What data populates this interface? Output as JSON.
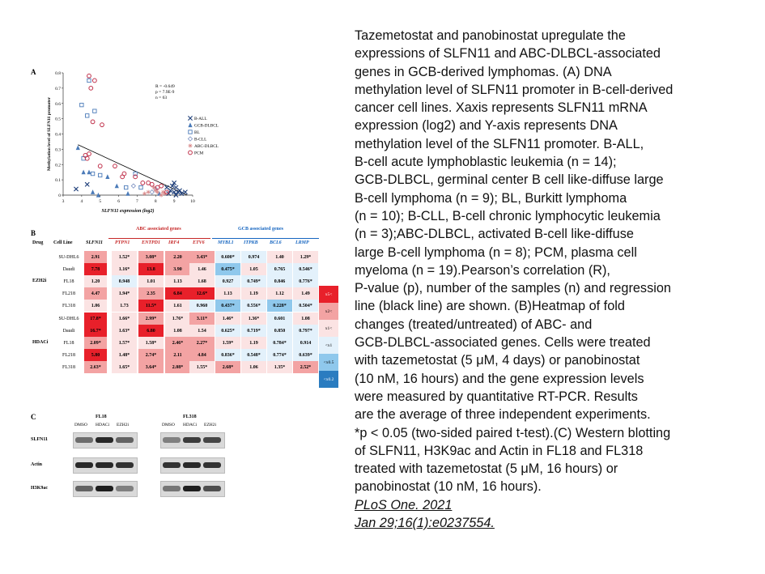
{
  "caption": {
    "lines": [
      "Tazemetostat and panobinostat upregulate the",
      "expressions of SLFN11 and ABC-DLBCL-associated",
      "genes in GCB-derived lymphomas. (A) DNA",
      "methylation level of SLFN11 promoter in B-cell-derived",
      "cancer cell lines. Xaxis represents SLFN11 mRNA",
      "expression (log2) and Y-axis represents DNA",
      "methylation level of the SLFN11 promoter. B-ALL,",
      "B-cell acute lymphoblastic leukemia (n = 14);",
      "GCB-DLBCL, germinal center B cell like-diffuse large",
      "B-cell lymphoma (n = 9); BL, Burkitt lymphoma",
      "(n = 10); B-CLL, B-cell chronic lymphocytic leukemia",
      "(n = 3);ABC-DLBCL, activated B-cell like-diffuse",
      "large B-cell lymphoma (n = 8); PCM, plasma cell",
      "myeloma (n = 19).Pearson’s correlation (R),",
      "P-value (p), number of the samples (n) and regression",
      "line (black line) are shown. (B)Heatmap of fold",
      "changes (treated/untreated) of ABC- and",
      "GCB-DLBCL-associated genes. Cells were treated",
      "with tazemetostat (5 μM, 4 days) or panobinostat",
      "(10 nM, 16 hours) and the gene expression levels",
      "were measured by quantitative RT-PCR. Results",
      "are the average of three independent experiments.",
      "*p < 0.05 (two-sided paired t-test).(C) Western blotting",
      "of SLFN11, H3K9ac and Actin in FL18 and FL318",
      "treated with tazemetostat (5 μM, 16 hours) or",
      "panobinostat (10 nM, 16 hours)."
    ],
    "citation_line1": "PLoS One. 2021",
    "citation_line2": "Jan 29;16(1):e0237554."
  },
  "panelA": {
    "letter": "A",
    "stats": [
      "R = -0.649",
      "p = 7.9E-9",
      "n = 63"
    ],
    "legend": [
      {
        "name": "B-ALL",
        "symbol": "x",
        "color": "#1f3f7a"
      },
      {
        "name": "GCB-DLBCL",
        "symbol": "triangle",
        "color": "#4a7ab8"
      },
      {
        "name": "BL",
        "symbol": "square",
        "color": "#4a7ab8"
      },
      {
        "name": "B-CLL",
        "symbol": "diamond",
        "color": "#7a8fc0"
      },
      {
        "name": "ABC-DLBCL",
        "symbol": "star",
        "color": "#d98a8a"
      },
      {
        "name": "PCM",
        "symbol": "circle",
        "color": "#c0304a"
      }
    ]
  },
  "chart_data": {
    "type": "scatter",
    "xlabel": "SLFN11 expression (log2)",
    "ylabel": "Methylation level of SLFN11 promoter",
    "xlim": [
      3,
      10
    ],
    "ylim": [
      0,
      0.8
    ],
    "xticks": [
      3,
      4,
      5,
      6,
      7,
      8,
      9,
      10
    ],
    "yticks": [
      0,
      0.1,
      0.2,
      0.3,
      0.4,
      0.5,
      0.6,
      0.7,
      0.8
    ],
    "regression": {
      "x": [
        3.8,
        9.7
      ],
      "y": [
        0.33,
        0.0
      ]
    },
    "series": [
      {
        "name": "B-ALL",
        "points": [
          [
            3.7,
            0.04
          ],
          [
            4.3,
            0.07
          ],
          [
            8.6,
            0.05
          ],
          [
            8.8,
            0.03
          ],
          [
            8.9,
            0.06
          ],
          [
            9.0,
            0.02
          ],
          [
            9.1,
            0.05
          ],
          [
            9.2,
            0.02
          ],
          [
            9.3,
            0.03
          ],
          [
            9.0,
            0.08
          ],
          [
            8.7,
            0.01
          ],
          [
            9.4,
            0.01
          ],
          [
            9.1,
            0.0
          ],
          [
            9.6,
            0.02
          ]
        ]
      },
      {
        "name": "GCB-DLBCL",
        "points": [
          [
            3.8,
            0.31
          ],
          [
            4.1,
            0.15
          ],
          [
            4.4,
            0.15
          ],
          [
            4.6,
            0.02
          ],
          [
            5.4,
            0.12
          ],
          [
            5.9,
            0.06
          ],
          [
            6.5,
            0.01
          ],
          [
            8.2,
            0.01
          ],
          [
            4.9,
            0.0
          ]
        ]
      },
      {
        "name": "BL",
        "points": [
          [
            4.0,
            0.59
          ],
          [
            4.3,
            0.52
          ],
          [
            4.1,
            0.24
          ],
          [
            4.6,
            0.14
          ],
          [
            5.0,
            0.13
          ],
          [
            4.4,
            0.75
          ],
          [
            4.7,
            0.55
          ],
          [
            6.9,
            0.14
          ],
          [
            7.2,
            0.05
          ],
          [
            6.4,
            0.05
          ]
        ]
      },
      {
        "name": "B-CLL",
        "points": [
          [
            7.8,
            0.02
          ],
          [
            6.8,
            0.06
          ],
          [
            8.0,
            0.04
          ]
        ]
      },
      {
        "name": "ABC-DLBCL",
        "points": [
          [
            7.4,
            0.01
          ],
          [
            8.0,
            0.03
          ],
          [
            8.3,
            0.0
          ],
          [
            7.6,
            0.02
          ],
          [
            8.5,
            0.01
          ],
          [
            7.9,
            0.05
          ],
          [
            8.1,
            0.02
          ],
          [
            8.4,
            0.02
          ]
        ]
      },
      {
        "name": "PCM",
        "points": [
          [
            4.4,
            0.78
          ],
          [
            4.5,
            0.7
          ],
          [
            4.7,
            0.75
          ],
          [
            5.1,
            0.46
          ],
          [
            4.6,
            0.48
          ],
          [
            4.2,
            0.26
          ],
          [
            4.3,
            0.24
          ],
          [
            4.4,
            0.27
          ],
          [
            5.0,
            0.19
          ],
          [
            5.8,
            0.19
          ],
          [
            6.3,
            0.14
          ],
          [
            6.9,
            0.12
          ],
          [
            7.3,
            0.08
          ],
          [
            7.8,
            0.07
          ],
          [
            8.1,
            0.05
          ],
          [
            8.3,
            0.06
          ],
          [
            8.6,
            0.02
          ],
          [
            7.6,
            0.08
          ],
          [
            6.2,
            0.12
          ]
        ]
      }
    ]
  },
  "panelB": {
    "letter": "B",
    "abc_header": "ABC associated genes",
    "gcb_header": "GCB associated genes",
    "col_drug": "Drug",
    "col_cell": "Cell Line",
    "genes_slfn": "SLFN11",
    "genes_abc": [
      "PTPN1",
      "ENTPD1",
      "IRF4",
      "ETV6"
    ],
    "genes_gcb": [
      "MYBL1",
      "ITPKB",
      "BCL6",
      "LRMP"
    ],
    "groups": [
      {
        "drug": "EZH2i",
        "rows": [
          {
            "cell": "SU-DHL6",
            "values": [
              "2.91",
              "1.52*",
              "3.08*",
              "2.20",
              "3.43*",
              "0.600*",
              "0.974",
              "1.40",
              "1.29*"
            ]
          },
          {
            "cell": "Daudi",
            "values": [
              "7.78",
              "1.16*",
              "13.8",
              "3.90",
              "1.46",
              "0.475*",
              "1.05",
              "0.765",
              "0.546*"
            ]
          },
          {
            "cell": "FL18",
            "values": [
              "1.20",
              "0.948",
              "1.01",
              "1.13",
              "1.68",
              "0.927",
              "0.749*",
              "0.846",
              "0.776*"
            ]
          },
          {
            "cell": "FL218",
            "values": [
              "4.47",
              "1.94*",
              "2.35",
              "6.84",
              "12.6*",
              "1.13",
              "1.19",
              "1.12",
              "1.49"
            ]
          },
          {
            "cell": "FL318",
            "values": [
              "1.06",
              "1.73",
              "11.5*",
              "1.61",
              "0.960",
              "0.437*",
              "0.556*",
              "0.228*",
              "0.504*"
            ]
          }
        ]
      },
      {
        "drug": "HDACi",
        "rows": [
          {
            "cell": "SU-DHL6",
            "values": [
              "17.8*",
              "1.66*",
              "2.99*",
              "1.76*",
              "3.11*",
              "1.46*",
              "1.36*",
              "0.601",
              "1.08"
            ]
          },
          {
            "cell": "Daudi",
            "values": [
              "16.7*",
              "1.63*",
              "6.80",
              "1.08",
              "1.54",
              "0.625*",
              "0.719*",
              "0.850",
              "0.797*"
            ]
          },
          {
            "cell": "FL18",
            "values": [
              "2.09*",
              "1.57*",
              "1.58*",
              "2.46*",
              "2.27*",
              "1.59*",
              "1.19",
              "0.784*",
              "0.914"
            ]
          },
          {
            "cell": "FL218",
            "values": [
              "5.80",
              "1.48*",
              "2.74*",
              "2.11",
              "4.84",
              "0.836*",
              "0.548*",
              "0.774*",
              "0.639*"
            ]
          },
          {
            "cell": "FL318",
            "values": [
              "2.63*",
              "1.65*",
              "3.64*",
              "2.08*",
              "1.55*",
              "2.68*",
              "1.06",
              "1.35*",
              "2.52*"
            ]
          }
        ]
      }
    ],
    "legend": [
      {
        "label": "x5<",
        "color": "#e8202a"
      },
      {
        "label": "x2<",
        "color": "#f3a3a3"
      },
      {
        "label": "x1<",
        "color": "#fbe3e3"
      },
      {
        "label": "<x1",
        "color": "#e3f1fb"
      },
      {
        "label": "<x0.5",
        "color": "#8fc8ec"
      },
      {
        "label": "<x0.2",
        "color": "#2a7cc0"
      }
    ]
  },
  "panelC": {
    "letter": "C",
    "cells": [
      "FL18",
      "FL318"
    ],
    "lanes": [
      "DMSO",
      "HDACi",
      "EZH2i"
    ],
    "blots": [
      "SLFN11",
      "Actin",
      "H3K9ac"
    ]
  }
}
